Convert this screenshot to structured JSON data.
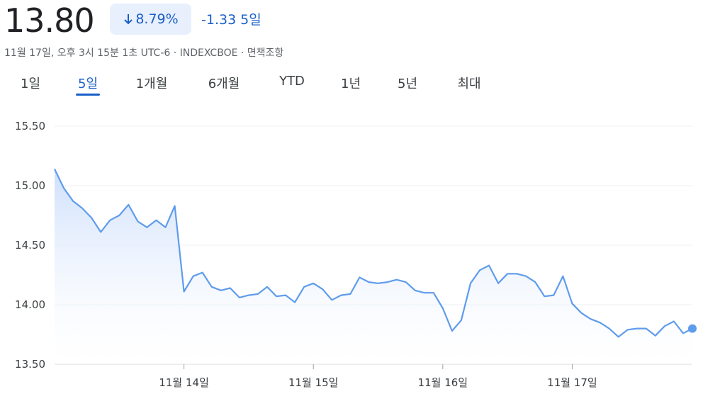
{
  "header": {
    "price": "13.80",
    "change_pct": "8.79%",
    "change_abs": "-1.33",
    "period": "5일",
    "timestamp": "11월 17일, 오후 3시 15분 1초 UTC-6 · INDEXCBOE · 면책조항"
  },
  "tabs": [
    "1일",
    "5일",
    "1개월",
    "6개월",
    "YTD",
    "1년",
    "5년",
    "최대"
  ],
  "selected_tab": 1,
  "chart_data": {
    "type": "line",
    "color": "#5f9cec",
    "x": [
      0,
      1,
      2,
      3,
      4,
      5,
      6,
      7,
      8,
      9,
      10,
      11,
      12,
      13,
      14,
      15,
      16,
      17,
      18,
      19,
      20,
      21,
      22,
      23,
      24,
      25,
      26,
      27,
      28,
      29,
      30,
      31,
      32,
      33,
      34,
      35,
      36,
      37,
      38,
      39,
      40,
      41,
      42,
      43,
      44,
      45,
      46,
      47,
      48,
      49,
      50,
      51,
      52,
      53,
      54,
      55,
      56,
      57,
      58,
      59,
      60,
      61,
      62,
      63,
      64,
      65,
      66,
      67,
      68,
      69
    ],
    "values": [
      15.14,
      14.98,
      14.87,
      14.81,
      14.73,
      14.61,
      14.71,
      14.75,
      14.84,
      14.7,
      14.65,
      14.71,
      14.65,
      14.83,
      14.11,
      14.24,
      14.27,
      14.15,
      14.12,
      14.14,
      14.06,
      14.08,
      14.09,
      14.15,
      14.07,
      14.08,
      14.02,
      14.15,
      14.18,
      14.13,
      14.04,
      14.08,
      14.09,
      14.23,
      14.19,
      14.18,
      14.19,
      14.21,
      14.19,
      14.12,
      14.1,
      14.1,
      13.97,
      13.78,
      13.87,
      14.18,
      14.29,
      14.33,
      14.18,
      14.26,
      14.26,
      14.24,
      14.19,
      14.07,
      14.08,
      14.24,
      14.01,
      13.93,
      13.88,
      13.85,
      13.8,
      13.73,
      13.79,
      13.8,
      13.8,
      13.74,
      13.82,
      13.86,
      13.76,
      13.8
    ],
    "xlim": [
      0,
      69
    ],
    "xticks": [
      {
        "value": 14,
        "label": "11월 14일"
      },
      {
        "value": 28,
        "label": "11월 15일"
      },
      {
        "value": 42,
        "label": "11월 16일"
      },
      {
        "value": 56,
        "label": "11월 17일"
      }
    ],
    "ylim": [
      13.5,
      15.5
    ],
    "yticks": [
      {
        "value": 13.5,
        "label": "13.50"
      },
      {
        "value": 14,
        "label": "14.00"
      },
      {
        "value": 14.5,
        "label": "14.50"
      },
      {
        "value": 15,
        "label": "15.00"
      },
      {
        "value": 15.5,
        "label": "15.50"
      }
    ],
    "grid": true
  }
}
